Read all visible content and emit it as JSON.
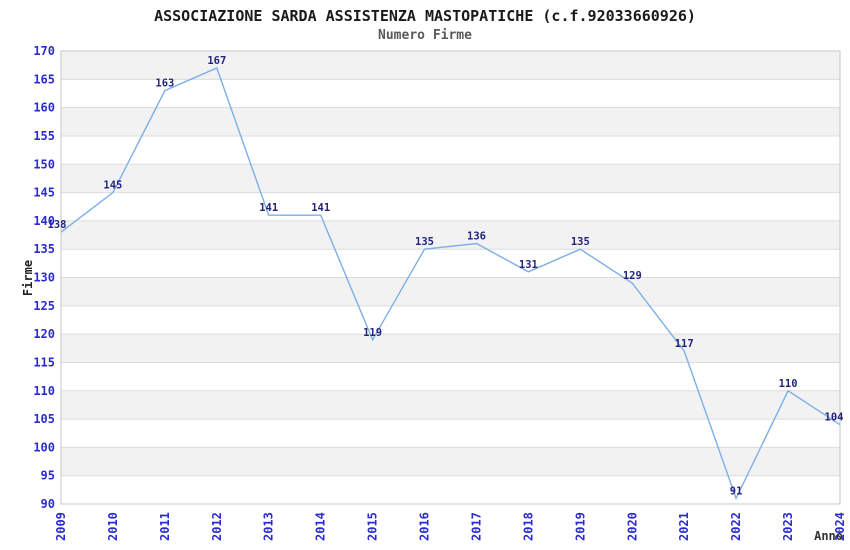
{
  "chart_data": {
    "type": "line",
    "title": "ASSOCIAZIONE SARDA ASSISTENZA MASTOPATICHE (c.f.92033660926)",
    "subtitle": "Numero Firme",
    "xlabel": "Anno",
    "ylabel": "Firme",
    "categories": [
      "2009",
      "2010",
      "2011",
      "2012",
      "2013",
      "2014",
      "2015",
      "2016",
      "2017",
      "2018",
      "2019",
      "2020",
      "2021",
      "2022",
      "2023",
      "2024"
    ],
    "values": [
      138,
      145,
      163,
      167,
      141,
      141,
      119,
      135,
      136,
      131,
      135,
      129,
      117,
      91,
      110,
      104
    ],
    "ylim": [
      90,
      170
    ],
    "ytick_step": 5,
    "grid": true,
    "legend": "none",
    "colors": {
      "line": "#7dafe8",
      "band": "#f2f2f2",
      "gridline": "#dcdcdc",
      "plot_border": "#c6c6c6",
      "tick_label": "#2b2bd2",
      "data_label": "#24247c",
      "title": "#1a1a1a",
      "subtitle": "#5a5a5a",
      "axis_title": "#333333",
      "background": "#ffffff"
    }
  }
}
